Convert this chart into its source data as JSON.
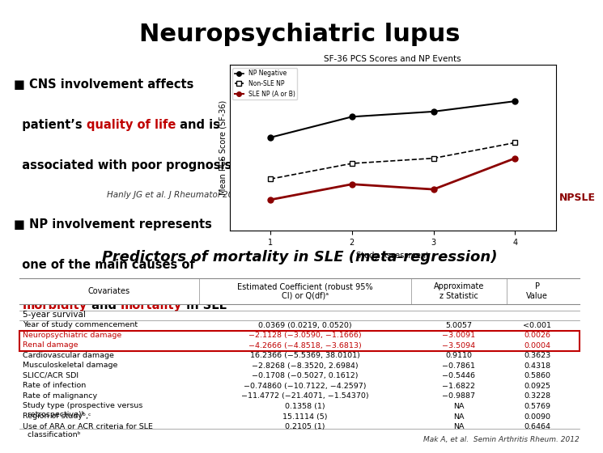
{
  "title": "Neuropsychiatric lupus",
  "title_bg": "#F5A800",
  "title_color": "#000000",
  "title_fontsize": 22,
  "top_bg": "#FFFFFF",
  "bottom_bg": "#D9E2F3",
  "citation1": "Hanly JG et al. J Rheumatol 2009",
  "npsle_label": "NPSLE",
  "table_title": "Predictors of mortality in SLE (meta-regression)",
  "table_title_fontsize": 13,
  "col_headers": [
    "Covariates",
    "Estimated Coefficient (robust 95%\nCI) or Q(df)ᵃ",
    "Approximate\nz Statistic",
    "P\nValue"
  ],
  "section_header": "5-year survival",
  "rows": [
    {
      "cov": "Year of study commencement",
      "coef": "0.0369 (0.0219, 0.0520)",
      "z": "5.0057",
      "p": "<0.001",
      "highlight": false
    },
    {
      "cov": "Neuropsychiatric damage",
      "coef": "−2.1128 (−3.0590, −1.1666)",
      "z": "−3.0091",
      "p": "0.0026",
      "highlight": true
    },
    {
      "cov": "Renal damage",
      "coef": "−4.2666 (−4.8518, −3.6813)",
      "z": "−3.5094",
      "p": "0.0004",
      "highlight": true
    },
    {
      "cov": "Cardiovascular damage",
      "coef": "16.2366 (−5.5369, 38.0101)",
      "z": "0.9110",
      "p": "0.3623",
      "highlight": false
    },
    {
      "cov": "Musculoskeletal damage",
      "coef": "−2.8268 (−8.3520, 2.6984)",
      "z": "−0.7861",
      "p": "0.4318",
      "highlight": false
    },
    {
      "cov": "SLICC/ACR SDI",
      "coef": "−0.1708 (−0.5027, 0.1612)",
      "z": "−0.5446",
      "p": "0.5860",
      "highlight": false
    },
    {
      "cov": "Rate of infection",
      "coef": "−0.74860 (−10.7122, −4.2597)",
      "z": "−1.6822",
      "p": "0.0925",
      "highlight": false
    },
    {
      "cov": "Rate of malignancy",
      "coef": "−11.4772 (−21.4071, −1.54370)",
      "z": "−0.9887",
      "p": "0.3228",
      "highlight": false
    },
    {
      "cov": "Study type (prospective versus\n  retrospective)ᵇ",
      "coef": "0.1358 (1)",
      "z": "NA",
      "p": "0.5769",
      "highlight": false
    },
    {
      "cov": "Region of studyᵇ,ᶜ",
      "coef": "15.1114 (5)",
      "z": "NA",
      "p": "0.0090",
      "highlight": false
    },
    {
      "cov": "Use of ARA or ACR criteria for SLE\n  classificationᵇ",
      "coef": "0.2105 (1)",
      "z": "NA",
      "p": "0.6464",
      "highlight": false
    }
  ],
  "citation2": "Mak A, et al.  Semin Arthritis Rheum. 2012",
  "highlight_color": "#C00000",
  "highlight_box_color": "#C00000"
}
